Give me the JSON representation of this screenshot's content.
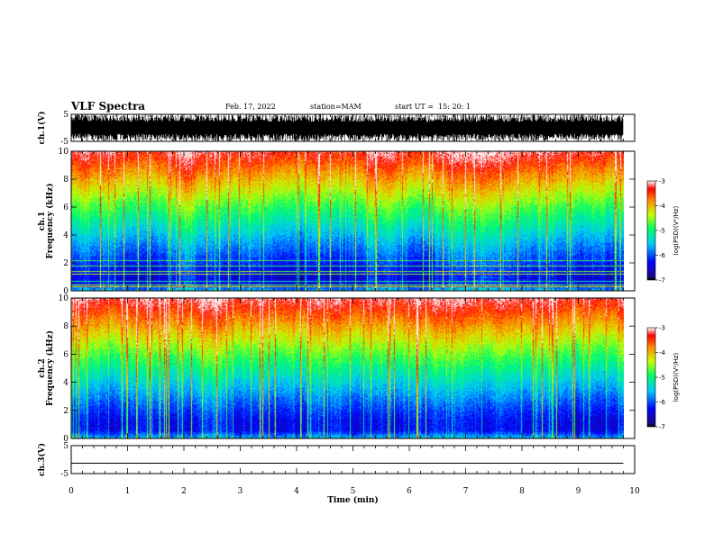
{
  "header": {
    "title": "VLF Spectra",
    "date": "Feb. 17, 2022",
    "station": "station=MAM",
    "start": "start UT =  15: 20: 1"
  },
  "chart_data": [
    {
      "type": "line",
      "ylabel": "ch.1(V)",
      "ylim": [
        -5,
        5
      ],
      "yticks": [
        "5",
        "-5"
      ],
      "xlim": [
        0,
        10
      ],
      "note": "waveform oscillating approximately between -5 and 5 V over the full record"
    },
    {
      "type": "heatmap",
      "ylabel": "ch.1\nFrequency (kHz)",
      "ylim": [
        0,
        10
      ],
      "yticks": [
        "0",
        "2",
        "4",
        "6",
        "8",
        "10"
      ],
      "xlim": [
        0,
        10
      ],
      "colorbar": {
        "label": "log(PSD)(V²/Hz)",
        "range": [
          -7,
          -3
        ],
        "ticks": [
          "-3",
          "-4",
          "-5",
          "-6",
          "-7"
        ]
      },
      "data_end_min": 9.8
    },
    {
      "type": "heatmap",
      "ylabel": "ch.2\nFrequency (kHz)",
      "ylim": [
        0,
        10
      ],
      "yticks": [
        "0",
        "2",
        "4",
        "6",
        "8",
        "10"
      ],
      "xlim": [
        0,
        10
      ],
      "colorbar": {
        "label": "log(PSD)(V²/Hz)",
        "range": [
          -7,
          -3
        ],
        "ticks": [
          "-3",
          "-4",
          "-5",
          "-6",
          "-7"
        ]
      },
      "data_end_min": 9.8
    },
    {
      "type": "line",
      "ylabel": "ch.3(V)",
      "ylim": [
        -5,
        5
      ],
      "yticks": [
        "5",
        "-5"
      ],
      "xlim": [
        0,
        10
      ],
      "x": [
        0,
        9.8
      ],
      "y": [
        -1.3,
        -1.3
      ]
    }
  ],
  "xaxis": {
    "label": "Time (min)",
    "ticks": [
      "0",
      "1",
      "2",
      "3",
      "4",
      "5",
      "6",
      "7",
      "8",
      "9",
      "10"
    ]
  },
  "colors": {
    "axis": "#000000",
    "background": "#ffffff"
  }
}
